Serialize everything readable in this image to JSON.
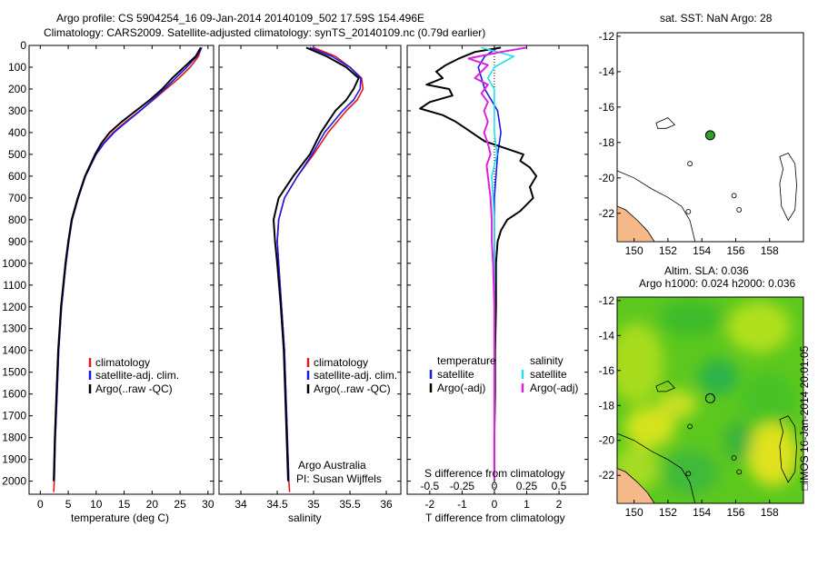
{
  "header": {
    "title_line1": "Argo profile: CS 5904254_16 09-Jan-2014 20140109_502 17.59S 154.496E",
    "title_line2": "Climatology: CARS2009. Satellite-adjusted climatology: synTS_20140109.nc (0.79d earlier)"
  },
  "colors": {
    "climatology": "#e8141e",
    "satellite_adj": "#1a1ae6",
    "argo": "#000000",
    "salinity_satellite": "#22e0f0",
    "salinity_argo": "#e020e0",
    "land": "#f5b98a",
    "argo_marker": "#2aa02a"
  },
  "depth_axis": {
    "ticks": [
      0,
      100,
      200,
      300,
      400,
      500,
      600,
      700,
      800,
      900,
      1000,
      1100,
      1200,
      1300,
      1400,
      1500,
      1600,
      1700,
      1800,
      1900,
      2000
    ],
    "range": [
      0,
      2060
    ]
  },
  "legend_profiles": [
    "climatology",
    "satellite-adj. clim.",
    "Argo(..raw -QC)"
  ],
  "legend_diff": {
    "temperature_header": "temperature",
    "salinity_header": "salinity",
    "satellite": "satellite",
    "argo_adj": "Argo(-adj)"
  },
  "credit": {
    "line1": "Argo Australia",
    "line2": "PI: Susan Wijffels"
  },
  "chart_data": [
    {
      "type": "line",
      "name": "temperature-profile",
      "xlabel": "temperature (deg C)",
      "ylabel": "",
      "xlim": [
        -2,
        31
      ],
      "ylim": [
        0,
        2060
      ],
      "xticks": [
        0,
        5,
        10,
        15,
        20,
        25,
        30
      ],
      "series": [
        {
          "name": "climatology",
          "depth": [
            10,
            50,
            100,
            150,
            200,
            250,
            300,
            350,
            400,
            450,
            500,
            600,
            700,
            800,
            900,
            1000,
            1200,
            1400,
            1600,
            1800,
            2000,
            2050
          ],
          "values": [
            28.8,
            28.3,
            26.8,
            24.8,
            22.5,
            20.2,
            17.8,
            15.3,
            13.0,
            11.3,
            9.9,
            8.1,
            6.8,
            5.7,
            5.1,
            4.6,
            3.8,
            3.3,
            3.0,
            2.7,
            2.5,
            2.4
          ]
        },
        {
          "name": "satellite-adj. clim.",
          "depth": [
            10,
            50,
            100,
            150,
            200,
            250,
            300,
            350,
            400,
            450,
            500,
            600,
            700,
            800,
            900,
            1000,
            1200,
            1400,
            1600,
            1800,
            2000
          ],
          "values": [
            28.9,
            28.0,
            26.2,
            24.2,
            22.2,
            20.1,
            17.9,
            15.5,
            13.2,
            11.4,
            10.0,
            8.1,
            6.8,
            5.7,
            5.1,
            4.6,
            3.8,
            3.3,
            3.0,
            2.7,
            2.5
          ]
        },
        {
          "name": "Argo(..raw -QC)",
          "depth": [
            10,
            50,
            100,
            150,
            200,
            250,
            300,
            350,
            400,
            450,
            500,
            600,
            700,
            800,
            900,
            1000,
            1200,
            1400,
            1600,
            1800,
            2000
          ],
          "values": [
            28.7,
            27.8,
            25.7,
            23.6,
            21.8,
            19.6,
            17.1,
            14.6,
            12.4,
            10.9,
            9.8,
            8.0,
            6.7,
            5.6,
            5.0,
            4.5,
            3.7,
            3.2,
            2.9,
            2.6,
            2.4
          ]
        }
      ]
    },
    {
      "type": "line",
      "name": "salinity-profile",
      "xlabel": "salinity",
      "xlim": [
        33.7,
        36.2
      ],
      "ylim": [
        0,
        2060
      ],
      "xticks": [
        34,
        34.5,
        35,
        35.5,
        36
      ],
      "xticklabels": [
        "34",
        "34.5",
        "35",
        "35.5",
        "36"
      ],
      "series": [
        {
          "name": "climatology",
          "depth": [
            10,
            50,
            100,
            150,
            200,
            250,
            300,
            400,
            500,
            600,
            700,
            800,
            900,
            1000,
            1200,
            1400,
            1600,
            1800,
            2000,
            2050
          ],
          "values": [
            35.0,
            35.3,
            35.5,
            35.66,
            35.68,
            35.6,
            35.45,
            35.2,
            35.0,
            34.78,
            34.6,
            34.52,
            34.5,
            34.52,
            34.56,
            34.6,
            34.62,
            34.64,
            34.66,
            34.67
          ]
        },
        {
          "name": "satellite-adj. clim.",
          "depth": [
            10,
            50,
            100,
            150,
            200,
            250,
            300,
            400,
            500,
            600,
            700,
            800,
            900,
            1000,
            1200,
            1400,
            1600,
            1800,
            2000
          ],
          "values": [
            34.95,
            35.25,
            35.5,
            35.65,
            35.64,
            35.55,
            35.4,
            35.15,
            34.98,
            34.78,
            34.6,
            34.52,
            34.5,
            34.52,
            34.56,
            34.6,
            34.62,
            34.64,
            34.66
          ]
        },
        {
          "name": "Argo(..raw -QC)",
          "depth": [
            10,
            50,
            100,
            150,
            200,
            250,
            300,
            400,
            500,
            600,
            700,
            800,
            900,
            1000,
            1200,
            1400,
            1600,
            1800,
            2000
          ],
          "values": [
            34.9,
            35.18,
            35.45,
            35.62,
            35.55,
            35.45,
            35.3,
            35.1,
            34.95,
            34.72,
            34.52,
            34.45,
            34.47,
            34.5,
            34.55,
            34.59,
            34.61,
            34.63,
            34.65
          ]
        }
      ]
    },
    {
      "type": "line",
      "name": "difference-profile",
      "xlabel": "T difference from climatology",
      "title": "S difference from climatology",
      "xlim": [
        -2.7,
        2.9
      ],
      "ylim": [
        0,
        2060
      ],
      "xticks": [
        -2,
        -1,
        0,
        1,
        2
      ],
      "s_ticks": [
        -0.5,
        -0.25,
        0,
        0.25,
        0.5
      ],
      "s_ticklabels": [
        "-0.5",
        "-0.25",
        "0",
        "0.25",
        "0.5"
      ],
      "series": [
        {
          "name": "temperature satellite",
          "depth": [
            10,
            50,
            100,
            200,
            300,
            400,
            500,
            700,
            1000,
            2000
          ],
          "values": [
            0.1,
            -0.3,
            -0.5,
            -0.3,
            0.1,
            0.2,
            0.1,
            0.0,
            0.0,
            0.0
          ]
        },
        {
          "name": "temperature Argo(-adj)",
          "depth": [
            10,
            30,
            60,
            90,
            120,
            150,
            180,
            200,
            230,
            260,
            290,
            320,
            350,
            380,
            410,
            440,
            470,
            500,
            530,
            560,
            600,
            650,
            700,
            760,
            800,
            850,
            900,
            1000,
            1200,
            1400,
            1600,
            1800,
            2000
          ],
          "values": [
            0.2,
            -0.6,
            -1.1,
            -1.5,
            -1.8,
            -1.6,
            -2.1,
            -1.4,
            -1.3,
            -2.0,
            -2.3,
            -1.6,
            -1.2,
            -0.9,
            -0.6,
            -0.3,
            0.3,
            0.9,
            0.8,
            1.1,
            1.3,
            1.1,
            1.2,
            0.8,
            0.4,
            0.2,
            0.1,
            0.05,
            0.05,
            0.02,
            0.02,
            0.0,
            0.0
          ]
        },
        {
          "name": "salinity satellite",
          "depth": [
            10,
            50,
            100,
            150,
            200,
            300,
            400,
            500,
            600,
            800,
            1000,
            2000
          ],
          "values": [
            -0.1,
            0.15,
            0.0,
            -0.05,
            0.0,
            0.0,
            0.0,
            0.02,
            -0.02,
            0.0,
            0.0,
            0.0
          ]
        },
        {
          "name": "salinity Argo(-adj)",
          "depth": [
            10,
            30,
            60,
            90,
            120,
            150,
            180,
            220,
            260,
            300,
            350,
            400,
            450,
            500,
            550,
            600,
            700,
            800,
            900,
            1000,
            1200,
            1400,
            1600,
            2000
          ],
          "values": [
            0.25,
            0.05,
            -0.2,
            -0.05,
            -0.1,
            -0.15,
            -0.05,
            -0.1,
            -0.05,
            -0.08,
            -0.05,
            -0.08,
            -0.05,
            -0.03,
            -0.06,
            -0.05,
            -0.03,
            -0.02,
            -0.02,
            -0.01,
            0.0,
            0.0,
            0.0,
            0.0
          ]
        }
      ]
    },
    {
      "type": "scatter",
      "name": "sst-map",
      "title": "sat. SST: NaN Argo: 28",
      "xlim": [
        149,
        160
      ],
      "ylim": [
        -23.6,
        -11.8
      ],
      "xticks": [
        150,
        152,
        154,
        156,
        158
      ],
      "yticks": [
        -12,
        -14,
        -16,
        -18,
        -20,
        -22
      ],
      "argo_position": {
        "lon": 154.496,
        "lat": -17.59
      }
    },
    {
      "type": "heatmap",
      "name": "sla-map",
      "title_line1": "Altim. SLA: 0.036",
      "title_line2": "Argo h1000: 0.024 h2000: 0.036",
      "xlim": [
        149,
        160
      ],
      "ylim": [
        -23.6,
        -11.8
      ],
      "xticks": [
        150,
        152,
        154,
        156,
        158
      ],
      "yticks": [
        -12,
        -14,
        -16,
        -18,
        -20,
        -22
      ],
      "argo_position": {
        "lon": 154.496,
        "lat": -17.59
      }
    }
  ],
  "stamp": "IMOS 16-Jan-2014 20:01:05"
}
